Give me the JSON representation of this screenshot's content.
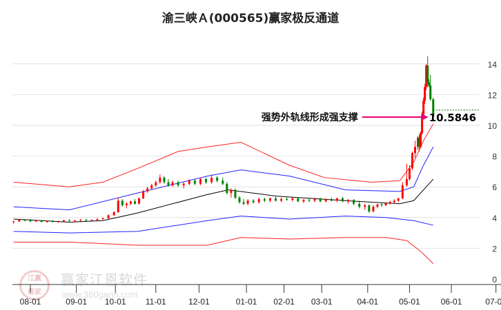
{
  "chart_data": {
    "type": "candlestick",
    "title": "渝三峡Ａ(000565)赢家极反通道",
    "x_unit": "days since 08-01",
    "xlim": [
      -14,
      334
    ],
    "ylim": [
      0,
      14.5
    ],
    "yticks": [
      0,
      2,
      4,
      6,
      8,
      10,
      12,
      14
    ],
    "xticks": [
      {
        "label": "08-01",
        "day": 0
      },
      {
        "label": "09-01",
        "day": 33
      },
      {
        "label": "10-01",
        "day": 61
      },
      {
        "label": "11-01",
        "day": 90
      },
      {
        "label": "12-01",
        "day": 121
      },
      {
        "label": "01-01",
        "day": 155
      },
      {
        "label": "02-01",
        "day": 182
      },
      {
        "label": "03-01",
        "day": 209
      },
      {
        "label": "04-01",
        "day": 242
      },
      {
        "label": "05-01",
        "day": 272
      },
      {
        "label": "06-01",
        "day": 302
      },
      {
        "label": "07-01",
        "day": 334
      }
    ],
    "grid": true,
    "colors": {
      "up": "#ff0000",
      "down": "#008000",
      "outer_band": "#ff2020",
      "inner_band": "#2020ff",
      "center": "#000000",
      "arrow": "#e8006e"
    },
    "candles": [
      [
        -12,
        3.7,
        3.8,
        3.6,
        3.75
      ],
      [
        -8,
        3.75,
        3.9,
        3.7,
        3.85
      ],
      [
        -4,
        3.85,
        3.9,
        3.75,
        3.8
      ],
      [
        0,
        3.8,
        3.9,
        3.7,
        3.75
      ],
      [
        4,
        3.75,
        3.85,
        3.7,
        3.8
      ],
      [
        8,
        3.8,
        3.85,
        3.7,
        3.72
      ],
      [
        12,
        3.72,
        3.8,
        3.65,
        3.78
      ],
      [
        16,
        3.78,
        3.85,
        3.7,
        3.7
      ],
      [
        20,
        3.7,
        3.8,
        3.65,
        3.75
      ],
      [
        24,
        3.75,
        3.85,
        3.7,
        3.82
      ],
      [
        28,
        3.82,
        3.9,
        3.75,
        3.78
      ],
      [
        32,
        3.78,
        3.85,
        3.7,
        3.8
      ],
      [
        36,
        3.8,
        3.9,
        3.75,
        3.85
      ],
      [
        40,
        3.85,
        3.9,
        3.78,
        3.8
      ],
      [
        44,
        3.8,
        3.88,
        3.75,
        3.84
      ],
      [
        48,
        3.84,
        3.95,
        3.8,
        3.9
      ],
      [
        52,
        3.9,
        4.0,
        3.85,
        3.95
      ],
      [
        56,
        3.95,
        4.2,
        3.9,
        4.15
      ],
      [
        60,
        4.15,
        4.4,
        4.1,
        4.35
      ],
      [
        63,
        4.35,
        5.3,
        4.3,
        5.1
      ],
      [
        66,
        5.1,
        5.2,
        4.7,
        4.8
      ],
      [
        69,
        4.8,
        5.0,
        4.6,
        4.9
      ],
      [
        72,
        4.9,
        5.1,
        4.8,
        5.05
      ],
      [
        75,
        5.05,
        5.2,
        4.85,
        4.9
      ],
      [
        78,
        4.9,
        5.3,
        4.85,
        5.25
      ],
      [
        81,
        5.25,
        5.8,
        5.2,
        5.7
      ],
      [
        84,
        5.7,
        6.0,
        5.6,
        5.9
      ],
      [
        87,
        5.9,
        6.2,
        5.8,
        6.1
      ],
      [
        90,
        6.1,
        6.4,
        6.0,
        6.3
      ],
      [
        93,
        6.3,
        6.8,
        6.2,
        6.6
      ],
      [
        96,
        6.6,
        6.7,
        6.2,
        6.3
      ],
      [
        99,
        6.3,
        6.5,
        6.0,
        6.1
      ],
      [
        102,
        6.1,
        6.4,
        6.0,
        6.3
      ],
      [
        106,
        6.3,
        6.4,
        6.0,
        6.1
      ],
      [
        110,
        6.1,
        6.3,
        5.9,
        6.2
      ],
      [
        114,
        6.2,
        6.5,
        6.1,
        6.4
      ],
      [
        118,
        6.4,
        6.5,
        6.1,
        6.2
      ],
      [
        122,
        6.2,
        6.6,
        6.1,
        6.5
      ],
      [
        126,
        6.5,
        6.6,
        6.2,
        6.3
      ],
      [
        130,
        6.3,
        6.8,
        6.2,
        6.6
      ],
      [
        134,
        6.6,
        6.7,
        6.3,
        6.4
      ],
      [
        138,
        6.4,
        6.6,
        6.1,
        6.2
      ],
      [
        141,
        6.2,
        6.3,
        5.5,
        5.6
      ],
      [
        144,
        5.6,
        5.9,
        5.3,
        5.8
      ],
      [
        147,
        5.8,
        5.9,
        5.2,
        5.3
      ],
      [
        150,
        5.3,
        5.4,
        4.9,
        5.0
      ],
      [
        153,
        5.0,
        5.2,
        4.8,
        4.9
      ],
      [
        156,
        4.9,
        5.2,
        4.8,
        5.1
      ],
      [
        160,
        5.1,
        5.2,
        4.9,
        5.0
      ],
      [
        164,
        5.0,
        5.3,
        4.9,
        5.2
      ],
      [
        168,
        5.2,
        5.3,
        5.0,
        5.1
      ],
      [
        172,
        5.1,
        5.3,
        5.0,
        5.25
      ],
      [
        176,
        5.25,
        5.35,
        5.05,
        5.1
      ],
      [
        180,
        5.1,
        5.3,
        5.0,
        5.2
      ],
      [
        184,
        5.2,
        5.35,
        5.1,
        5.15
      ],
      [
        188,
        5.15,
        5.3,
        5.05,
        5.25
      ],
      [
        192,
        5.25,
        5.3,
        5.0,
        5.05
      ],
      [
        196,
        5.05,
        5.2,
        4.95,
        5.15
      ],
      [
        200,
        5.15,
        5.25,
        5.0,
        5.1
      ],
      [
        204,
        5.1,
        5.3,
        5.0,
        5.2
      ],
      [
        208,
        5.2,
        5.3,
        5.0,
        5.05
      ],
      [
        212,
        5.05,
        5.25,
        5.0,
        5.2
      ],
      [
        216,
        5.2,
        5.3,
        5.05,
        5.1
      ],
      [
        220,
        5.1,
        5.3,
        5.0,
        5.25
      ],
      [
        224,
        5.25,
        5.35,
        5.0,
        5.05
      ],
      [
        228,
        5.05,
        5.2,
        4.9,
        5.15
      ],
      [
        232,
        5.15,
        5.2,
        4.8,
        4.9
      ],
      [
        236,
        4.9,
        5.1,
        4.6,
        4.7
      ],
      [
        240,
        4.7,
        4.9,
        4.5,
        4.8
      ],
      [
        243,
        4.8,
        4.85,
        4.3,
        4.4
      ],
      [
        246,
        4.4,
        4.8,
        4.35,
        4.7
      ],
      [
        249,
        4.7,
        4.9,
        4.6,
        4.85
      ],
      [
        252,
        4.85,
        5.0,
        4.7,
        4.8
      ],
      [
        255,
        4.8,
        5.0,
        4.75,
        4.95
      ],
      [
        258,
        4.95,
        5.1,
        4.85,
        5.0
      ],
      [
        261,
        5.0,
        5.2,
        4.9,
        5.1
      ],
      [
        264,
        5.1,
        5.3,
        5.0,
        5.25
      ],
      [
        267,
        5.25,
        6.3,
        5.2,
        6.1
      ],
      [
        270,
        6.1,
        7.5,
        6.0,
        6.5
      ],
      [
        272,
        6.5,
        7.4,
        6.4,
        7.2
      ],
      [
        274,
        7.2,
        8.3,
        7.1,
        8.2
      ],
      [
        276,
        8.2,
        9.0,
        7.9,
        8.6
      ],
      [
        278,
        8.6,
        9.3,
        8.4,
        9.2
      ],
      [
        279,
        9.2,
        9.4,
        8.3,
        8.6
      ],
      [
        280,
        8.6,
        9.6,
        8.5,
        9.5
      ],
      [
        281,
        9.5,
        10.9,
        9.4,
        10.7
      ],
      [
        282,
        10.7,
        11.8,
        10.5,
        11.6
      ],
      [
        283,
        11.6,
        12.7,
        11.4,
        12.5
      ],
      [
        284,
        12.5,
        14.0,
        12.3,
        13.9
      ],
      [
        285,
        13.9,
        14.5,
        12.5,
        12.8
      ],
      [
        286,
        12.8,
        13.0,
        12.5,
        12.6
      ],
      [
        287,
        12.6,
        13.3,
        11.6,
        11.7
      ],
      [
        289,
        11.7,
        11.8,
        10.5,
        10.6
      ]
    ],
    "series": [
      {
        "name": "outer-upper",
        "color": "#ff2020",
        "points": [
          [
            -12,
            6.3
          ],
          [
            28,
            6.0
          ],
          [
            52,
            6.3
          ],
          [
            77,
            7.2
          ],
          [
            106,
            8.3
          ],
          [
            127,
            8.6
          ],
          [
            151,
            8.9
          ],
          [
            186,
            7.4
          ],
          [
            211,
            6.6
          ],
          [
            245,
            6.3
          ],
          [
            265,
            6.4
          ],
          [
            275,
            7.6
          ],
          [
            282,
            9.0
          ],
          [
            289,
            10.1
          ]
        ]
      },
      {
        "name": "inner-upper",
        "color": "#2020ff",
        "points": [
          [
            -12,
            4.7
          ],
          [
            28,
            4.5
          ],
          [
            77,
            5.6
          ],
          [
            127,
            6.7
          ],
          [
            151,
            7.1
          ],
          [
            186,
            6.7
          ],
          [
            226,
            5.8
          ],
          [
            265,
            5.7
          ],
          [
            275,
            6.0
          ],
          [
            282,
            7.4
          ],
          [
            289,
            8.6
          ]
        ]
      },
      {
        "name": "center",
        "color": "#000000",
        "points": [
          [
            -12,
            3.9
          ],
          [
            28,
            3.7
          ],
          [
            52,
            3.8
          ],
          [
            77,
            4.3
          ],
          [
            127,
            5.5
          ],
          [
            142,
            5.8
          ],
          [
            176,
            5.4
          ],
          [
            226,
            5.1
          ],
          [
            265,
            4.9
          ],
          [
            275,
            5.1
          ],
          [
            282,
            5.8
          ],
          [
            289,
            6.5
          ]
        ]
      },
      {
        "name": "inner-lower",
        "color": "#2020ff",
        "points": [
          [
            -12,
            3.1
          ],
          [
            28,
            3.0
          ],
          [
            77,
            3.1
          ],
          [
            127,
            3.8
          ],
          [
            151,
            4.1
          ],
          [
            186,
            3.9
          ],
          [
            226,
            4.1
          ],
          [
            255,
            4.0
          ],
          [
            275,
            3.8
          ],
          [
            289,
            3.5
          ]
        ]
      },
      {
        "name": "outer-lower",
        "color": "#ff2020",
        "points": [
          [
            -12,
            2.4
          ],
          [
            28,
            2.4
          ],
          [
            77,
            2.2
          ],
          [
            127,
            2.2
          ],
          [
            151,
            2.7
          ],
          [
            186,
            2.6
          ],
          [
            226,
            2.7
          ],
          [
            255,
            2.7
          ],
          [
            270,
            2.5
          ],
          [
            280,
            1.8
          ],
          [
            289,
            1.0
          ]
        ]
      }
    ],
    "annotation": {
      "text": "强势外轨线形成强支撑",
      "value_label": "10.5846",
      "value": 10.5846,
      "arrow_from_day": 238,
      "arrow_to_day": 285
    }
  },
  "watermark": {
    "seal": "江赢恩家",
    "name": "赢家江恩软件",
    "url": "www.360gann.com"
  }
}
